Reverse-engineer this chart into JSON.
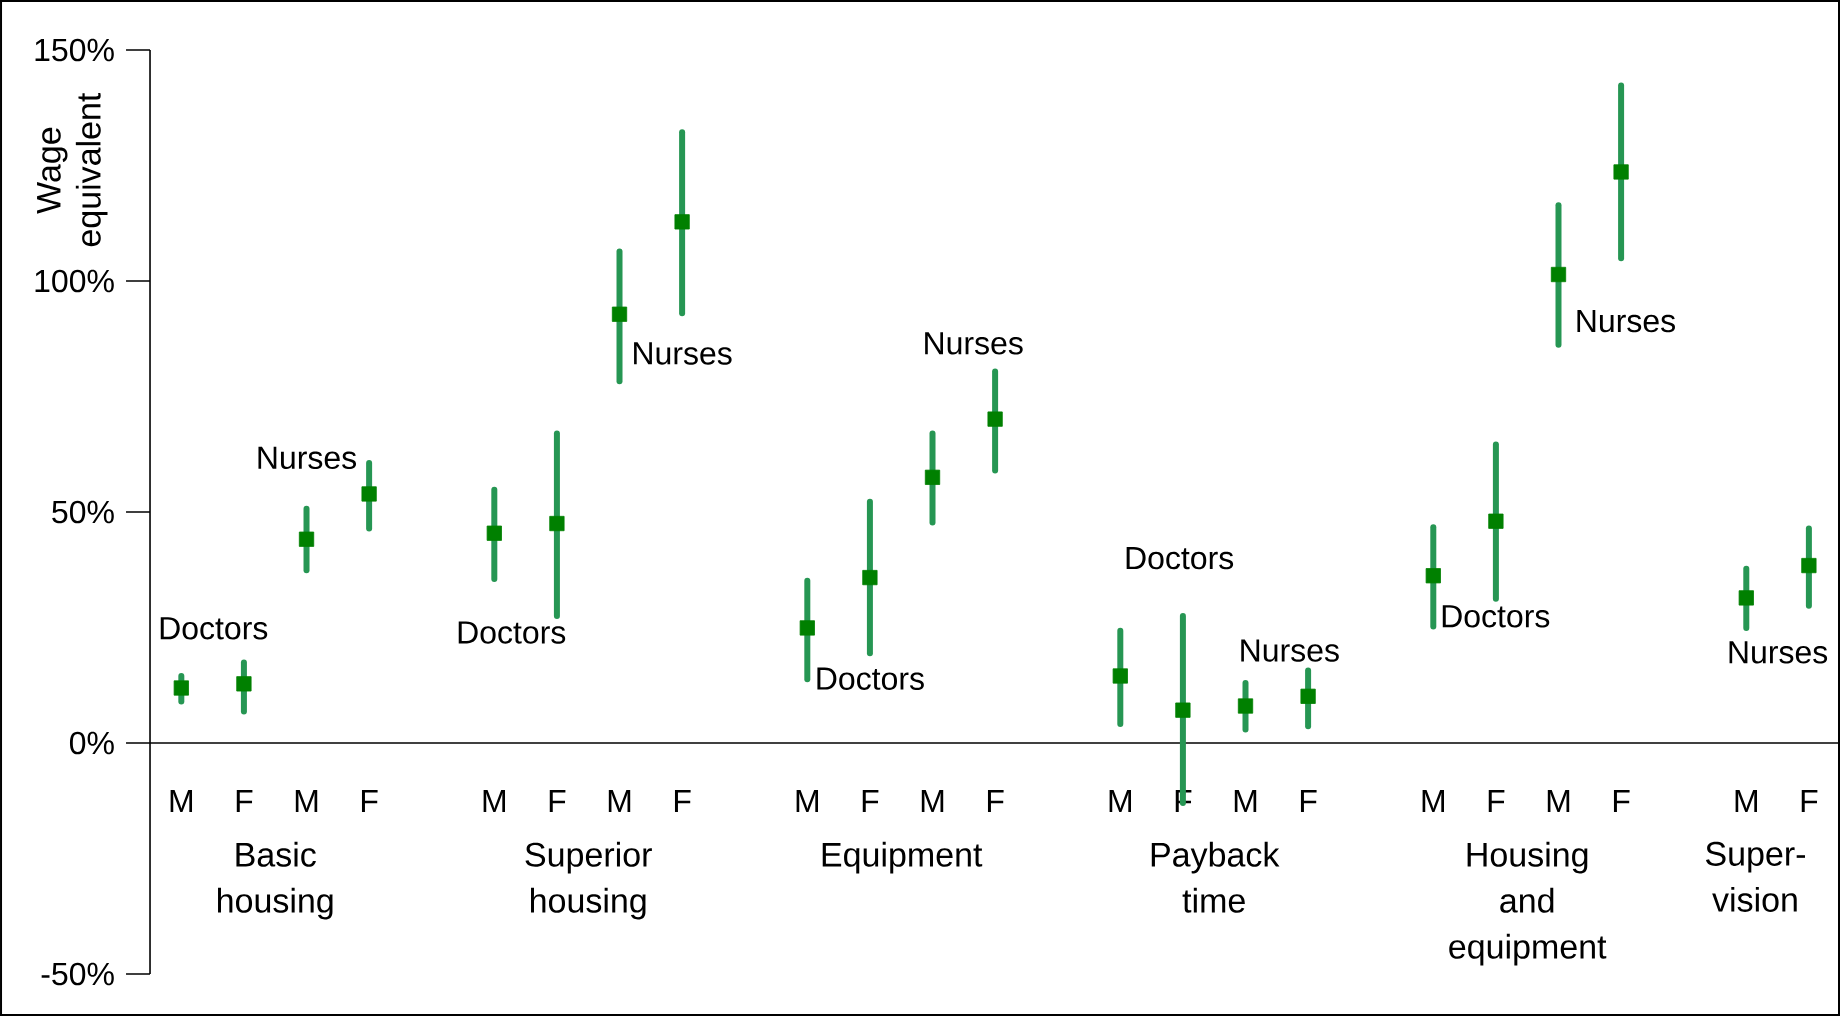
{
  "chart_data": {
    "type": "scatter",
    "ylabel": "Wage equivalent",
    "categories": [
      "M",
      "F",
      "M",
      "F",
      null,
      "M",
      "F",
      "M",
      "F",
      null,
      "M",
      "F",
      "M",
      "F",
      null,
      "M",
      "F",
      "M",
      "F",
      null,
      "M",
      "F",
      "M",
      "F",
      null,
      "M",
      "F"
    ],
    "values": [
      11.9,
      12.8,
      44.1,
      53.9,
      null,
      45.4,
      47.5,
      92.8,
      112.8,
      null,
      24.9,
      35.8,
      57.5,
      70.1,
      null,
      14.5,
      7.1,
      8.0,
      10.1,
      null,
      36.2,
      48.0,
      101.4,
      123.6,
      null,
      31.4,
      38.4
    ],
    "errors": [
      [
        9.0,
        14.5
      ],
      [
        6.8,
        17.4
      ],
      [
        37.4,
        50.7
      ],
      [
        46.4,
        60.6
      ],
      null,
      [
        35.5,
        54.8
      ],
      [
        27.5,
        67.0
      ],
      [
        78.3,
        106.4
      ],
      [
        93.0,
        132.2
      ],
      null,
      [
        13.8,
        35.1
      ],
      [
        19.4,
        52.2
      ],
      [
        47.7,
        67.0
      ],
      [
        59.0,
        80.4
      ],
      null,
      [
        4.1,
        24.3
      ],
      [
        -13.0,
        27.5
      ],
      [
        2.9,
        13.0
      ],
      [
        3.6,
        15.7
      ],
      null,
      [
        25.2,
        46.7
      ],
      [
        31.2,
        64.6
      ],
      [
        86.2,
        116.4
      ],
      [
        104.9,
        142.3
      ],
      null,
      [
        24.9,
        37.7
      ],
      [
        29.7,
        46.4
      ]
    ],
    "color": "#008000",
    "marker": "square",
    "ylim": [
      -50,
      150
    ],
    "yticks": [
      {
        "value": -50,
        "label": "-50%"
      },
      {
        "value": 0,
        "label": "0%"
      },
      {
        "value": 50,
        "label": "50%"
      },
      {
        "value": 100,
        "label": "100%"
      },
      {
        "value": 150,
        "label": "150%"
      }
    ],
    "annotations": [
      "Doctors",
      "Nurses",
      "Doctors",
      "Nurses",
      "Doctors",
      "Nurses",
      "Doctors",
      "Nurses",
      "Doctors",
      "Nurses",
      "Nurses",
      "Basic housing",
      "Superior housing",
      "Equipment",
      "Payback time",
      "Housing and equipment",
      "Super-vision"
    ]
  }
}
